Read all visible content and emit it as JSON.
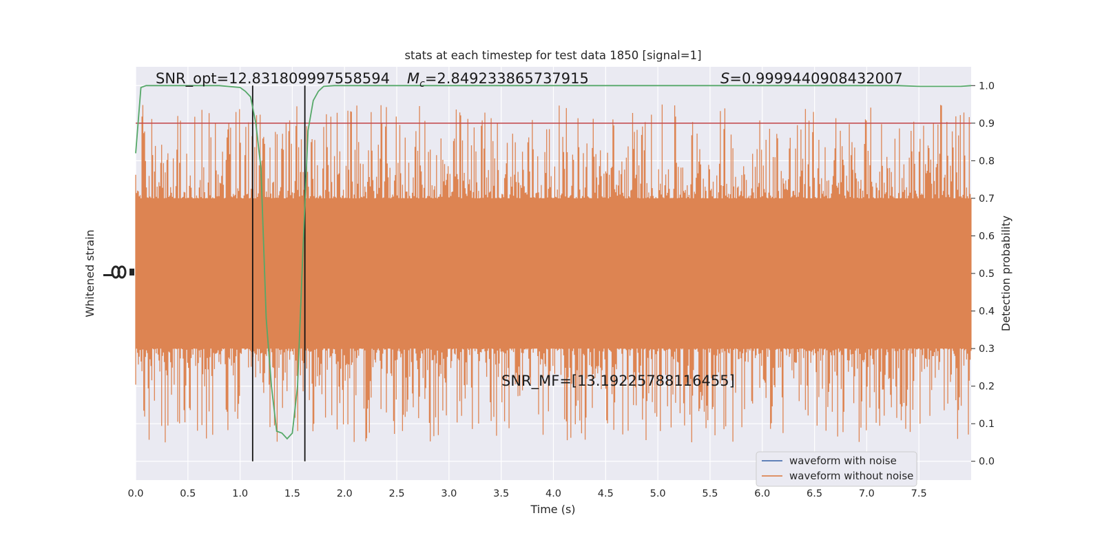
{
  "chart_data": {
    "type": "line",
    "title": "stats at each timestep for test data 1850 [signal=1]",
    "xlabel": "Time (s)",
    "ylabel_left": "Whitened strain",
    "ylabel_right": "Detection probability",
    "xlim": [
      0,
      8
    ],
    "ylim_right": [
      -0.05,
      1.05
    ],
    "x_ticks": [
      "0.0",
      "0.5",
      "1.0",
      "1.5",
      "2.0",
      "2.5",
      "3.0",
      "3.5",
      "4.0",
      "4.5",
      "5.0",
      "5.5",
      "6.0",
      "6.5",
      "7.0",
      "7.5"
    ],
    "y_ticks_right": [
      "0.0",
      "0.1",
      "0.2",
      "0.3",
      "0.4",
      "0.5",
      "0.6",
      "0.7",
      "0.8",
      "0.9",
      "1.0"
    ],
    "grid": true,
    "legend_position": "lower-right",
    "series": [
      {
        "name": "waveform with noise",
        "color": "#4c72b0",
        "values": []
      },
      {
        "name": "waveform without noise",
        "color": "#dd8452",
        "values": []
      },
      {
        "name": "",
        "axis": "right",
        "color": "#55a868",
        "x": [
          0.0,
          0.05,
          0.1,
          0.2,
          0.5,
          0.8,
          1.0,
          1.05,
          1.1,
          1.15,
          1.2,
          1.25,
          1.3,
          1.35,
          1.4,
          1.45,
          1.5,
          1.55,
          1.6,
          1.65,
          1.7,
          1.75,
          1.8,
          1.9,
          2.0,
          3.0,
          4.0,
          5.0,
          6.0,
          7.0,
          7.3,
          7.5,
          7.7,
          7.9,
          8.0
        ],
        "values": [
          0.82,
          0.995,
          1.0,
          1.0,
          1.0,
          1.0,
          0.995,
          0.985,
          0.97,
          0.9,
          0.78,
          0.38,
          0.2,
          0.08,
          0.075,
          0.06,
          0.075,
          0.2,
          0.55,
          0.88,
          0.96,
          0.985,
          0.998,
          1.0,
          1.0,
          1.0,
          1.0,
          1.0,
          1.0,
          1.0,
          1.0,
          0.998,
          0.998,
          0.998,
          1.0
        ]
      }
    ],
    "threshold": {
      "value": 0.9,
      "color": "#c44e52"
    },
    "vertical_lines": [
      1.12,
      1.62
    ],
    "noise_band": {
      "center": 0.5,
      "core_half_width": 0.2,
      "max_half_width": 0.45,
      "color": "#dd8452"
    },
    "annotations": {
      "snr_opt": "SNR_opt=12.831809997558594",
      "mc_symbol": "M",
      "mc_sub": "c",
      "mc_value": "=2.849233865737915",
      "s_symbol": "S",
      "s_value": "=0.9999440908432007",
      "snr_mf": "SNR_MF=[13.19225788116455]"
    }
  }
}
